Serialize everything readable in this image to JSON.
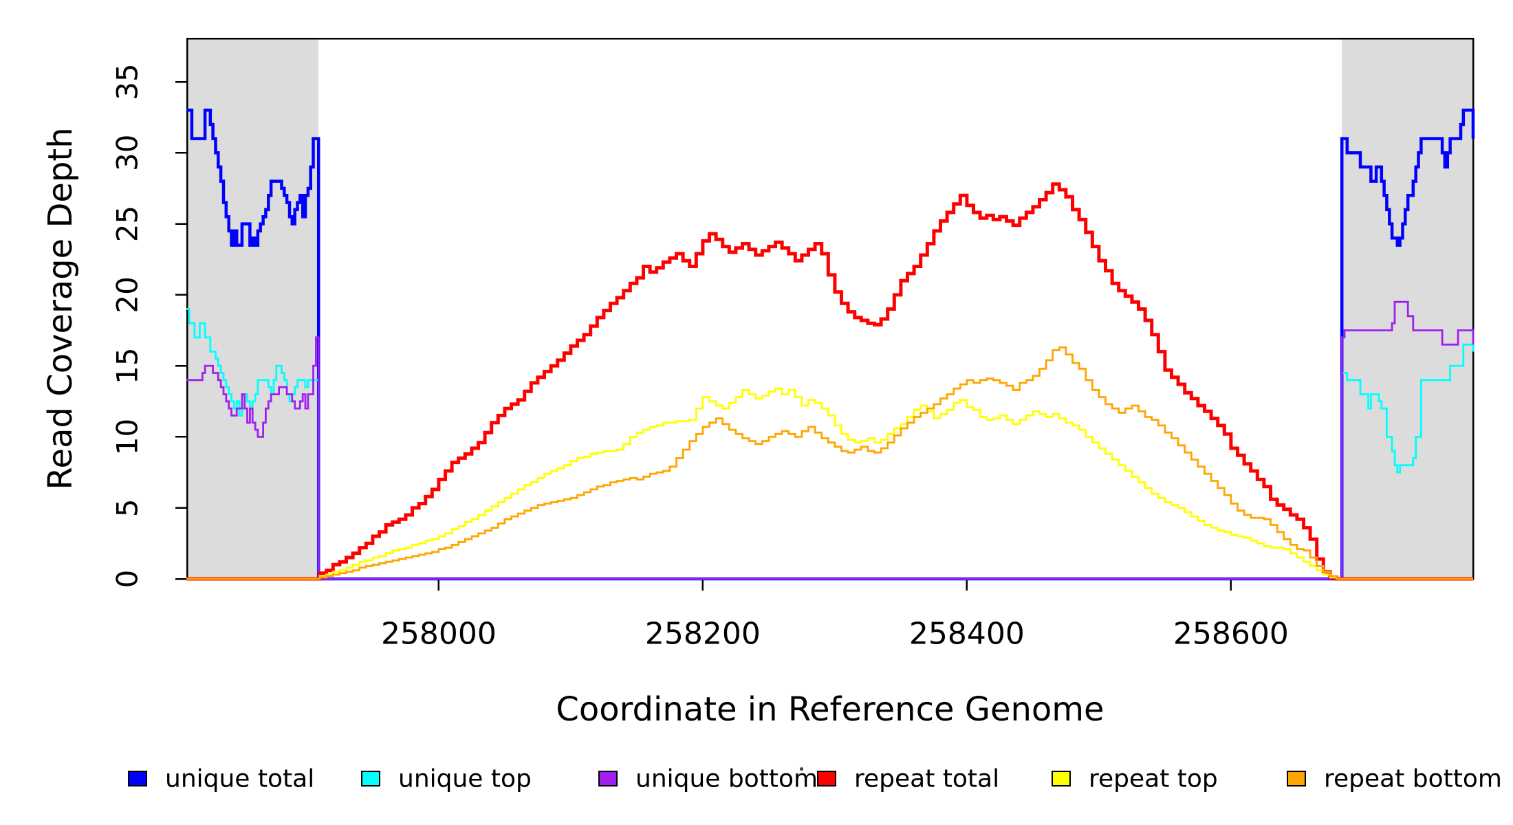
{
  "chart_data": {
    "type": "line",
    "subtype": "step-after",
    "title": "",
    "xlabel": "Coordinate in Reference Genome",
    "ylabel": "Read Coverage Depth",
    "grid": false,
    "legend_position": "bottom",
    "background_color": "#ffffff",
    "axis_color": "#000000",
    "shade_color": "#DCDCDC",
    "x_axis": {
      "label": "Coordinate in Reference Genome",
      "range": [
        257809.4,
        258783.4
      ],
      "ticks": [
        258000,
        258200,
        258400,
        258600
      ],
      "tick_labels": [
        "258000",
        "258200",
        "258400",
        "258600"
      ]
    },
    "y_axis": {
      "label": "Read Coverage Depth",
      "range": [
        0,
        38.05
      ],
      "ticks": [
        0,
        5,
        10,
        15,
        20,
        25,
        30,
        35
      ],
      "tick_labels": [
        "0",
        "5",
        "10",
        "15",
        "20",
        "25",
        "30",
        "35"
      ]
    },
    "shaded_regions": [
      {
        "name": "left-flank",
        "x0": 257809.4,
        "x1": 257909
      },
      {
        "name": "right-flank",
        "x0": 258684,
        "x1": 258783.4
      }
    ],
    "series": [
      {
        "name": "unique-total",
        "label": "unique total",
        "color": "#0000FF",
        "stroke_width": 4.5,
        "segments": [
          {
            "x0": 257809,
            "dx": 2,
            "v": [
              33,
              33,
              31,
              31,
              31,
              31,
              31,
              33,
              33,
              32,
              31,
              30,
              29,
              28,
              26.5,
              25.5,
              24.5,
              23.5,
              24.5,
              23.5,
              23.5,
              25,
              25,
              25,
              23.5,
              24,
              23.5,
              24.5,
              25,
              25.5,
              26,
              27,
              28,
              28,
              28,
              28,
              27.5,
              27,
              26.5,
              25.5,
              25,
              26,
              26.5,
              27,
              25.5,
              27,
              27.5,
              29,
              31,
              31,
              31
            ]
          },
          {
            "x0": 257909,
            "dx": 1,
            "v": [
              0
            ]
          },
          {
            "x0": 258684,
            "dx": 2,
            "v": [
              31,
              31,
              30,
              30,
              30,
              30,
              30,
              29,
              29,
              29,
              29,
              28,
              28,
              29,
              29,
              28,
              27,
              26,
              25,
              24,
              24,
              23.5,
              24,
              25,
              26,
              27,
              27,
              28,
              29,
              30,
              31,
              31,
              31,
              31,
              31,
              31,
              31,
              31,
              30,
              29,
              30,
              31,
              31,
              31,
              31,
              32,
              33,
              33,
              33,
              33,
              31
            ]
          }
        ]
      },
      {
        "name": "unique-top",
        "label": "unique top",
        "color": "#00FFFF",
        "stroke_width": 2.8,
        "segments": [
          {
            "x0": 257809,
            "dx": 2,
            "v": [
              19,
              18,
              18,
              17,
              17,
              18,
              18,
              17,
              17,
              16,
              16,
              15.5,
              15,
              14.5,
              14,
              13.5,
              13,
              12.5,
              12,
              12.5,
              11.5,
              12,
              13,
              12.5,
              12,
              12.5,
              13,
              14,
              14,
              14,
              14,
              13.5,
              13,
              14,
              15,
              15,
              14.5,
              14,
              13,
              12.5,
              13,
              13.5,
              14,
              14,
              14,
              13.5,
              14,
              14,
              14,
              14,
              14
            ]
          },
          {
            "x0": 257909,
            "dx": 1,
            "v": [
              0
            ]
          },
          {
            "x0": 258684,
            "dx": 2,
            "v": [
              14.5,
              14.5,
              14,
              14,
              14,
              14,
              14,
              13,
              13,
              13,
              12,
              13,
              13,
              13,
              12.5,
              12,
              12,
              10,
              10,
              9,
              8,
              7.5,
              8,
              8,
              8,
              8,
              8,
              8.5,
              10,
              10,
              14,
              14,
              14,
              14,
              14,
              14,
              14,
              14,
              14,
              14,
              14,
              15,
              15,
              15,
              15,
              15,
              16.5,
              16.5,
              16.5,
              16.5,
              16
            ]
          }
        ]
      },
      {
        "name": "unique-bottom",
        "label": "unique bottom",
        "color": "#A020F0",
        "stroke_width": 2.8,
        "segments": [
          {
            "x0": 257809,
            "dx": 2,
            "v": [
              14,
              14,
              14,
              14,
              14,
              14,
              14.5,
              15,
              15,
              15,
              14.5,
              14.5,
              14,
              13.5,
              13,
              12.5,
              12,
              11.5,
              11.5,
              12,
              12,
              13,
              12,
              11,
              12,
              11,
              10.5,
              10,
              10,
              11,
              12,
              12.5,
              13,
              13,
              13,
              13.5,
              13.5,
              13.5,
              13,
              13,
              12.5,
              12,
              12,
              12.5,
              13,
              12,
              13,
              13,
              15,
              17,
              17
            ]
          },
          {
            "x0": 257909,
            "dx": 1,
            "v": [
              0
            ]
          },
          {
            "x0": 258684,
            "dx": 2,
            "v": [
              17,
              17.5,
              17.5,
              17.5,
              17.5,
              17.5,
              17.5,
              17.5,
              17.5,
              17.5,
              17.5,
              17.5,
              17.5,
              17.5,
              17.5,
              17.5,
              17.5,
              17.5,
              17.5,
              18,
              19.5,
              19.5,
              19.5,
              19.5,
              19.5,
              18.5,
              18.5,
              17.5,
              17.5,
              17.5,
              17.5,
              17.5,
              17.5,
              17.5,
              17.5,
              17.5,
              17.5,
              17.5,
              16.5,
              16.5,
              16.5,
              16.5,
              16.5,
              16.5,
              17.5,
              17.5,
              17.5,
              17.5,
              17.5,
              17.5,
              16.5
            ]
          }
        ]
      },
      {
        "name": "repeat-total",
        "label": "repeat total",
        "color": "#FF0000",
        "stroke_width": 5,
        "segments": [
          {
            "x0": 257809,
            "dx": 1,
            "v": [
              0
            ]
          },
          {
            "x0": 257910,
            "dx": 5,
            "v": [
              0.4,
              0.6,
              1.0,
              1.2,
              1.5,
              1.8,
              2.2,
              2.5,
              3.0,
              3.3,
              3.8,
              4.0,
              4.2,
              4.5,
              5.0,
              5.3,
              5.8,
              6.3,
              7.0,
              7.6,
              8.2,
              8.5,
              8.8,
              9.2,
              9.6,
              10.3,
              11.0,
              11.5,
              12.0,
              12.3,
              12.6,
              13.2,
              13.8,
              14.2,
              14.6,
              15.0,
              15.4,
              15.9,
              16.4,
              16.8,
              17.2,
              17.8,
              18.4,
              18.9,
              19.4,
              19.8,
              20.3,
              20.8,
              21.2,
              22.0,
              21.6,
              21.9,
              22.3,
              22.6,
              22.9,
              22.4,
              22.0,
              22.9,
              23.8,
              24.3,
              23.9,
              23.4,
              23.0,
              23.3,
              23.6,
              23.2,
              22.8,
              23.1,
              23.4,
              23.7,
              23.3,
              22.9,
              22.4,
              22.8,
              23.2,
              23.6,
              22.9,
              21.4,
              20.2,
              19.4,
              18.8,
              18.4,
              18.2,
              18.0,
              17.9,
              18.3,
              19.0,
              20.0,
              21.0,
              21.5,
              22.0,
              22.8,
              23.6,
              24.5,
              25.2,
              25.8,
              26.4,
              27.0,
              26.3,
              25.8,
              25.4,
              25.6,
              25.3,
              25.5,
              25.2,
              24.9,
              25.4,
              25.8,
              26.2,
              26.7,
              27.2,
              27.8,
              27.4,
              26.9,
              26.0,
              25.3,
              24.4,
              23.4,
              22.4,
              21.7,
              20.8,
              20.3,
              19.9,
              19.5,
              19.0,
              18.2,
              17.2,
              16.0,
              14.7,
              14.2,
              13.7,
              13.1,
              12.7,
              12.2,
              11.8,
              11.3,
              10.8,
              10.2,
              9.2,
              8.7,
              8.1,
              7.6,
              7.0,
              6.5,
              5.6,
              5.2,
              4.9,
              4.5,
              4.2,
              3.6,
              2.8,
              1.4,
              0.5,
              0.1,
              0
            ]
          }
        ]
      },
      {
        "name": "repeat-top",
        "label": "repeat top",
        "color": "#FFFF00",
        "stroke_width": 2.8,
        "segments": [
          {
            "x0": 257809,
            "dx": 1,
            "v": [
              0
            ]
          },
          {
            "x0": 257910,
            "dx": 5,
            "v": [
              0.2,
              0.3,
              0.5,
              0.6,
              0.8,
              1.0,
              1.2,
              1.3,
              1.5,
              1.6,
              1.8,
              2.0,
              2.1,
              2.2,
              2.4,
              2.5,
              2.7,
              2.8,
              3.0,
              3.2,
              3.5,
              3.7,
              4.0,
              4.2,
              4.5,
              4.8,
              5.1,
              5.4,
              5.7,
              6.0,
              6.3,
              6.6,
              6.8,
              7.1,
              7.4,
              7.6,
              7.8,
              8.0,
              8.3,
              8.5,
              8.6,
              8.8,
              8.9,
              9.0,
              9.0,
              9.1,
              9.5,
              10.0,
              10.3,
              10.5,
              10.7,
              10.8,
              11.0,
              11.0,
              11.1,
              11.1,
              11.2,
              12.0,
              12.8,
              12.5,
              12.2,
              12.0,
              12.4,
              12.8,
              13.3,
              13.0,
              12.7,
              12.9,
              13.2,
              13.4,
              13.0,
              13.3,
              12.8,
              12.2,
              12.6,
              12.4,
              12.0,
              11.5,
              10.8,
              10.2,
              9.8,
              9.6,
              9.7,
              9.9,
              9.6,
              9.8,
              10.2,
              10.6,
              10.9,
              11.4,
              11.9,
              12.2,
              11.8,
              11.3,
              11.6,
              11.9,
              12.4,
              12.6,
              12.1,
              11.9,
              11.4,
              11.2,
              11.3,
              11.5,
              11.2,
              10.9,
              11.2,
              11.5,
              11.8,
              11.6,
              11.4,
              11.6,
              11.3,
              11.0,
              10.8,
              10.5,
              10.0,
              9.6,
              9.2,
              8.8,
              8.4,
              8.0,
              7.6,
              7.2,
              6.8,
              6.4,
              6.0,
              5.7,
              5.4,
              5.2,
              5.0,
              4.7,
              4.4,
              4.1,
              3.8,
              3.6,
              3.4,
              3.3,
              3.1,
              3.0,
              2.9,
              2.7,
              2.5,
              2.3,
              2.2,
              2.2,
              2.1,
              1.8,
              1.5,
              1.2,
              0.9,
              0.6,
              0.3,
              0.1,
              0
            ]
          }
        ]
      },
      {
        "name": "repeat-bottom",
        "label": "repeat bottom",
        "color": "#FFA500",
        "stroke_width": 2.8,
        "segments": [
          {
            "x0": 257809,
            "dx": 1,
            "v": [
              0
            ]
          },
          {
            "x0": 257910,
            "dx": 5,
            "v": [
              0.1,
              0.2,
              0.3,
              0.4,
              0.5,
              0.6,
              0.8,
              0.9,
              1.0,
              1.1,
              1.2,
              1.3,
              1.4,
              1.5,
              1.6,
              1.7,
              1.8,
              1.9,
              2.1,
              2.2,
              2.4,
              2.6,
              2.8,
              3.0,
              3.2,
              3.4,
              3.6,
              3.9,
              4.2,
              4.4,
              4.6,
              4.8,
              5.0,
              5.2,
              5.3,
              5.4,
              5.5,
              5.6,
              5.7,
              5.9,
              6.1,
              6.3,
              6.5,
              6.6,
              6.8,
              6.9,
              7.0,
              7.1,
              7.0,
              7.2,
              7.4,
              7.5,
              7.6,
              7.9,
              8.5,
              9.1,
              9.7,
              10.2,
              10.7,
              11.0,
              11.3,
              10.9,
              10.5,
              10.2,
              9.9,
              9.7,
              9.5,
              9.7,
              10.0,
              10.2,
              10.4,
              10.2,
              10.0,
              10.4,
              10.7,
              10.3,
              9.9,
              9.6,
              9.3,
              9.0,
              8.9,
              9.1,
              9.3,
              9.0,
              8.9,
              9.2,
              9.6,
              10.1,
              10.6,
              11.0,
              11.4,
              11.7,
              12.0,
              12.3,
              12.7,
              13.0,
              13.4,
              13.7,
              14.0,
              13.8,
              14.0,
              14.1,
              14.0,
              13.8,
              13.6,
              13.3,
              13.8,
              14.0,
              14.3,
              14.8,
              15.4,
              16.1,
              16.3,
              15.8,
              15.2,
              14.8,
              14.0,
              13.3,
              12.8,
              12.3,
              12.0,
              11.7,
              12.0,
              12.2,
              11.8,
              11.4,
              11.2,
              10.8,
              10.3,
              9.9,
              9.4,
              8.9,
              8.4,
              7.9,
              7.4,
              6.9,
              6.4,
              5.9,
              5.3,
              4.8,
              4.5,
              4.3,
              4.3,
              4.2,
              3.8,
              3.3,
              2.8,
              2.4,
              2.1,
              2.0,
              1.5,
              0.9,
              0.5,
              0.2,
              0
            ]
          }
        ]
      }
    ]
  },
  "legend": {
    "entries": [
      {
        "label": "unique total",
        "color": "#0000FF"
      },
      {
        "label": "unique top",
        "color": "#00FFFF"
      },
      {
        "label": "unique bottom",
        "color": "#A020F0"
      },
      {
        "label": "repeat total",
        "color": "#FF0000"
      },
      {
        "label": "repeat top",
        "color": "#FFFF00"
      },
      {
        "label": "repeat bottom",
        "color": "#FFA500"
      }
    ],
    "stray_dot": "·"
  }
}
